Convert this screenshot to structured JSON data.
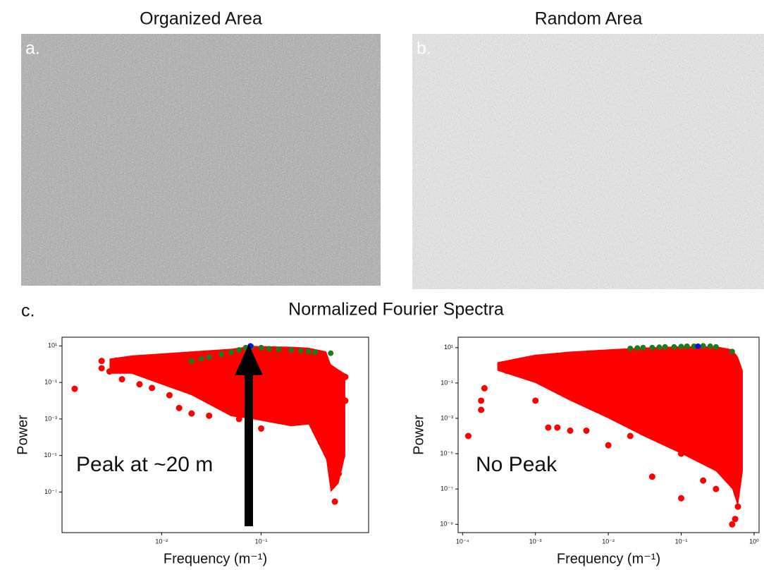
{
  "panels": [
    {
      "label": "a.",
      "title": "Organized Area"
    },
    {
      "label": "b.",
      "title": "Random Area"
    }
  ],
  "section_label": "c.",
  "section_title": "Normalized Fourier Spectra",
  "chart_data": [
    {
      "type": "scatter",
      "x_label": "Frequency (m⁻¹)",
      "y_label": "Power",
      "annotation": "Peak at ~20 m",
      "xscale": "log",
      "yscale": "log",
      "xlim": [
        0.001,
        1.2
      ],
      "ylim": [
        6e-10,
        30
      ],
      "xticks": [
        {
          "value": 0.01,
          "label": "10⁻²"
        },
        {
          "value": 0.1,
          "label": "10⁻¹"
        }
      ],
      "yticks": [
        {
          "value": 10,
          "label": "10¹"
        },
        {
          "value": 0.1,
          "label": "10⁻¹"
        },
        {
          "value": 0.001,
          "label": "10⁻³"
        },
        {
          "value": 1e-05,
          "label": "10⁻⁵"
        },
        {
          "value": 1e-07,
          "label": "10⁻⁷"
        }
      ],
      "series": [
        {
          "color": "#ff0000",
          "x": [
            0.003,
            0.005,
            0.02,
            0.05,
            0.08,
            0.2,
            0.3,
            0.45,
            0.5,
            0.6,
            0.7
          ],
          "upper": [
            2,
            3,
            5,
            7,
            10,
            9,
            8,
            5,
            1,
            0.5,
            0.3
          ],
          "lower": [
            0.3,
            0.3,
            0.02,
            0.0014,
            0.001,
            0.0004,
            0.0005,
            6e-06,
            1e-07,
            3e-07,
            1e-05
          ]
        },
        {
          "color": "#ff0000",
          "x": [
            0.00134,
            0.0025,
            0.0025,
            0.003,
            0.004,
            0.0035,
            0.006,
            0.008,
            0.012,
            0.015,
            0.02,
            0.03,
            0.05,
            0.06,
            0.1,
            0.12,
            0.25,
            0.4,
            0.5,
            0.55,
            0.6,
            0.65,
            0.7,
            0.7
          ],
          "values": [
            0.045,
            1.5,
            0.6,
            0.4,
            0.15,
            1.6,
            0.08,
            0.05,
            0.02,
            0.004,
            0.002,
            0.0015,
            0.003,
            0.001,
            0.0003,
            0.002,
            0.0008,
            5e-05,
            2e-06,
            3e-08,
            1e-06,
            1e-05,
            0.2,
            0.01
          ]
        },
        {
          "color": "#1f7a1f",
          "x": [
            0.02,
            0.025,
            0.03,
            0.04,
            0.05,
            0.06,
            0.07,
            0.08,
            0.1,
            0.12,
            0.15,
            0.2,
            0.25,
            0.3,
            0.35,
            0.5
          ],
          "values": [
            1.5,
            2,
            2.5,
            3.5,
            4.5,
            6,
            8,
            9,
            8,
            7,
            6.5,
            6,
            5.5,
            5,
            4.5,
            4
          ]
        },
        {
          "color": "#1010dd",
          "x": [
            0.078
          ],
          "values": [
            10
          ]
        }
      ]
    },
    {
      "type": "scatter",
      "x_label": "Frequency (m⁻¹)",
      "y_label": "Power",
      "annotation": "No Peak",
      "xscale": "log",
      "yscale": "log",
      "xlim": [
        8.7e-05,
        1.17
      ],
      "ylim": [
        3.4e-10,
        39
      ],
      "xticks": [
        {
          "value": 0.0001,
          "label": "10⁻⁴"
        },
        {
          "value": 0.001,
          "label": "10⁻³"
        },
        {
          "value": 0.01,
          "label": "10⁻²"
        },
        {
          "value": 0.1,
          "label": "10⁻¹"
        },
        {
          "value": 1,
          "label": "10⁰"
        }
      ],
      "yticks": [
        {
          "value": 10,
          "label": "10¹"
        },
        {
          "value": 0.1,
          "label": "10⁻¹"
        },
        {
          "value": 0.001,
          "label": "10⁻³"
        },
        {
          "value": 1e-05,
          "label": "10⁻⁵"
        },
        {
          "value": 1e-07,
          "label": "10⁻⁷"
        },
        {
          "value": 1e-09,
          "label": "10⁻⁹"
        }
      ],
      "series": [
        {
          "color": "#ff0000",
          "x": [
            0.0003,
            0.001,
            0.003,
            0.01,
            0.03,
            0.1,
            0.3,
            0.5,
            0.6,
            0.7
          ],
          "upper": [
            1.5,
            4,
            6,
            8,
            10,
            12,
            12,
            8,
            3,
            0.5
          ],
          "lower": [
            0.5,
            0.1,
            0.01,
            0.001,
            0.0001,
            1e-05,
            1e-06,
            1e-07,
            1e-08,
            1e-06
          ]
        },
        {
          "color": "#ff0000",
          "x": [
            0.00012,
            0.00018,
            0.00018,
            0.0002,
            0.0004,
            0.001,
            0.0015,
            0.002,
            0.003,
            0.005,
            0.01,
            0.02,
            0.04,
            0.1,
            0.2,
            0.3,
            0.5,
            0.55,
            0.6,
            0.1
          ],
          "values": [
            0.0001,
            0.01,
            0.003,
            0.05,
            0.5,
            0.01,
            0.0003,
            0.0003,
            0.0002,
            0.0002,
            3e-05,
            0.0001,
            5e-07,
            1e-05,
            3e-07,
            1e-07,
            1e-09,
            2e-09,
            1e-08,
            3e-08
          ]
        },
        {
          "color": "#1f7a1f",
          "x": [
            0.02,
            0.025,
            0.03,
            0.04,
            0.05,
            0.06,
            0.08,
            0.1,
            0.12,
            0.15,
            0.2,
            0.25,
            0.3,
            0.5
          ],
          "values": [
            9,
            9.5,
            10,
            10,
            10.5,
            11,
            11,
            11.5,
            12,
            12,
            12.5,
            12,
            11,
            6
          ]
        },
        {
          "color": "#1010dd",
          "x": [
            0.17
          ],
          "values": [
            12
          ]
        }
      ]
    }
  ]
}
